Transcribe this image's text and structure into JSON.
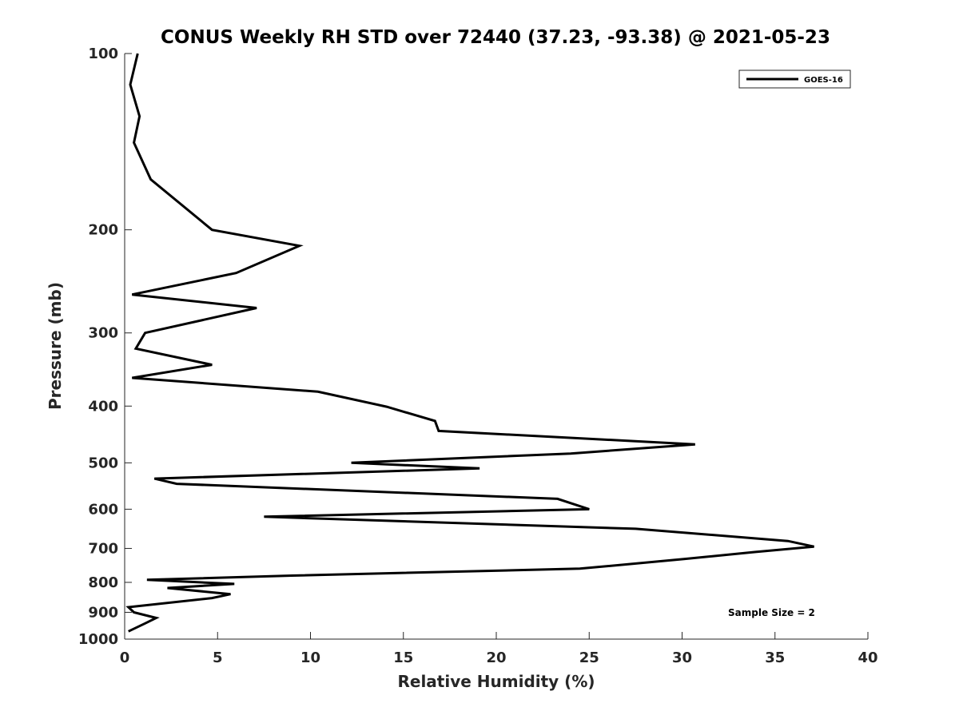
{
  "chart_data": {
    "type": "line",
    "title": "CONUS Weekly RH STD over 72440 (37.23, -93.38) @ 2021-05-23",
    "xlabel": "Relative Humidity (%)",
    "ylabel": "Pressure (mb)",
    "xlim": [
      0,
      40
    ],
    "ylim": [
      1000,
      100
    ],
    "y_scale": "log",
    "y_reversed": true,
    "grid": false,
    "xticks": [
      0,
      5,
      10,
      15,
      20,
      25,
      30,
      35,
      40
    ],
    "xtick_labels": [
      "0",
      "5",
      "10",
      "15",
      "20",
      "25",
      "30",
      "35",
      "40"
    ],
    "yticks": [
      100,
      200,
      300,
      400,
      500,
      600,
      700,
      800,
      900,
      1000
    ],
    "ytick_labels": [
      "100",
      "200",
      "300",
      "400",
      "500",
      "600",
      "700",
      "800",
      "900",
      "1000"
    ],
    "legend_position": "top-right",
    "series": [
      {
        "name": "GOES-16",
        "color": "#000000",
        "x": [
          0.7,
          0.3,
          0.8,
          0.5,
          1.4,
          4.7,
          9.4,
          6.0,
          0.4,
          7.1,
          1.1,
          0.6,
          4.7,
          0.4,
          10.4,
          14.1,
          16.7,
          16.9,
          30.7,
          24.0,
          12.2,
          19.1,
          1.6,
          2.8,
          23.3,
          25.0,
          7.5,
          27.5,
          35.7,
          37.1,
          33.9,
          30.1,
          24.5,
          9.0,
          1.2,
          5.9,
          2.3,
          5.7,
          4.7,
          0.2,
          0.5,
          1.7,
          1.1,
          0.2
        ],
        "y": [
          100,
          113,
          128,
          142,
          164,
          200,
          213,
          237,
          258,
          272,
          300,
          319,
          340,
          358,
          378,
          401,
          424,
          441,
          465,
          482,
          500,
          511,
          532,
          543,
          576,
          600,
          618,
          648,
          680,
          695,
          710,
          730,
          758,
          779,
          792,
          805,
          818,
          838,
          851,
          882,
          900,
          920,
          940,
          970
        ]
      }
    ],
    "annotation": "Sample Size = 2"
  }
}
